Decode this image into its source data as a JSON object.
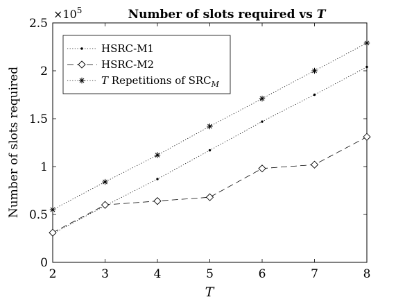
{
  "chart_data": {
    "type": "line",
    "title_prefix": "Number of slots required vs",
    "title_var": "T",
    "xlabel": "T",
    "ylabel": "Number of slots required",
    "y_multiplier": "×10",
    "y_exponent": "5",
    "xlim": [
      2,
      8
    ],
    "ylim": [
      0,
      2.5
    ],
    "x_ticks": [
      2,
      3,
      4,
      5,
      6,
      7,
      8
    ],
    "y_ticks": [
      0,
      0.5,
      1,
      1.5,
      2,
      2.5
    ],
    "y_tick_labels": [
      "0",
      "0.5",
      "1",
      "1.5",
      "2",
      "2.5"
    ],
    "x_tick_labels": [
      "2",
      "3",
      "4",
      "5",
      "6",
      "7",
      "8"
    ],
    "x": [
      2,
      3,
      4,
      5,
      6,
      7,
      8
    ],
    "legend_position": "top-left",
    "grid": false,
    "series": [
      {
        "name": "HSRC-M1",
        "name_parts": {
          "italic": "",
          "main": "HSRC-M1",
          "sub": ""
        },
        "marker": "dot",
        "dash": "dotted",
        "values": [
          0.3,
          0.59,
          0.87,
          1.17,
          1.47,
          1.75,
          2.04
        ]
      },
      {
        "name": "HSRC-M2",
        "name_parts": {
          "italic": "",
          "main": "HSRC-M2",
          "sub": ""
        },
        "marker": "diamond",
        "dash": "dashed",
        "values": [
          0.31,
          0.6,
          0.64,
          0.68,
          0.98,
          1.02,
          1.31
        ]
      },
      {
        "name": "T Repetitions of SRC_M",
        "name_parts": {
          "italic": "T",
          "main": " Repetitions of SRC",
          "sub": "M"
        },
        "marker": "asterisk",
        "dash": "dotted",
        "values": [
          0.55,
          0.84,
          1.12,
          1.42,
          1.71,
          2.0,
          2.29
        ]
      }
    ]
  }
}
